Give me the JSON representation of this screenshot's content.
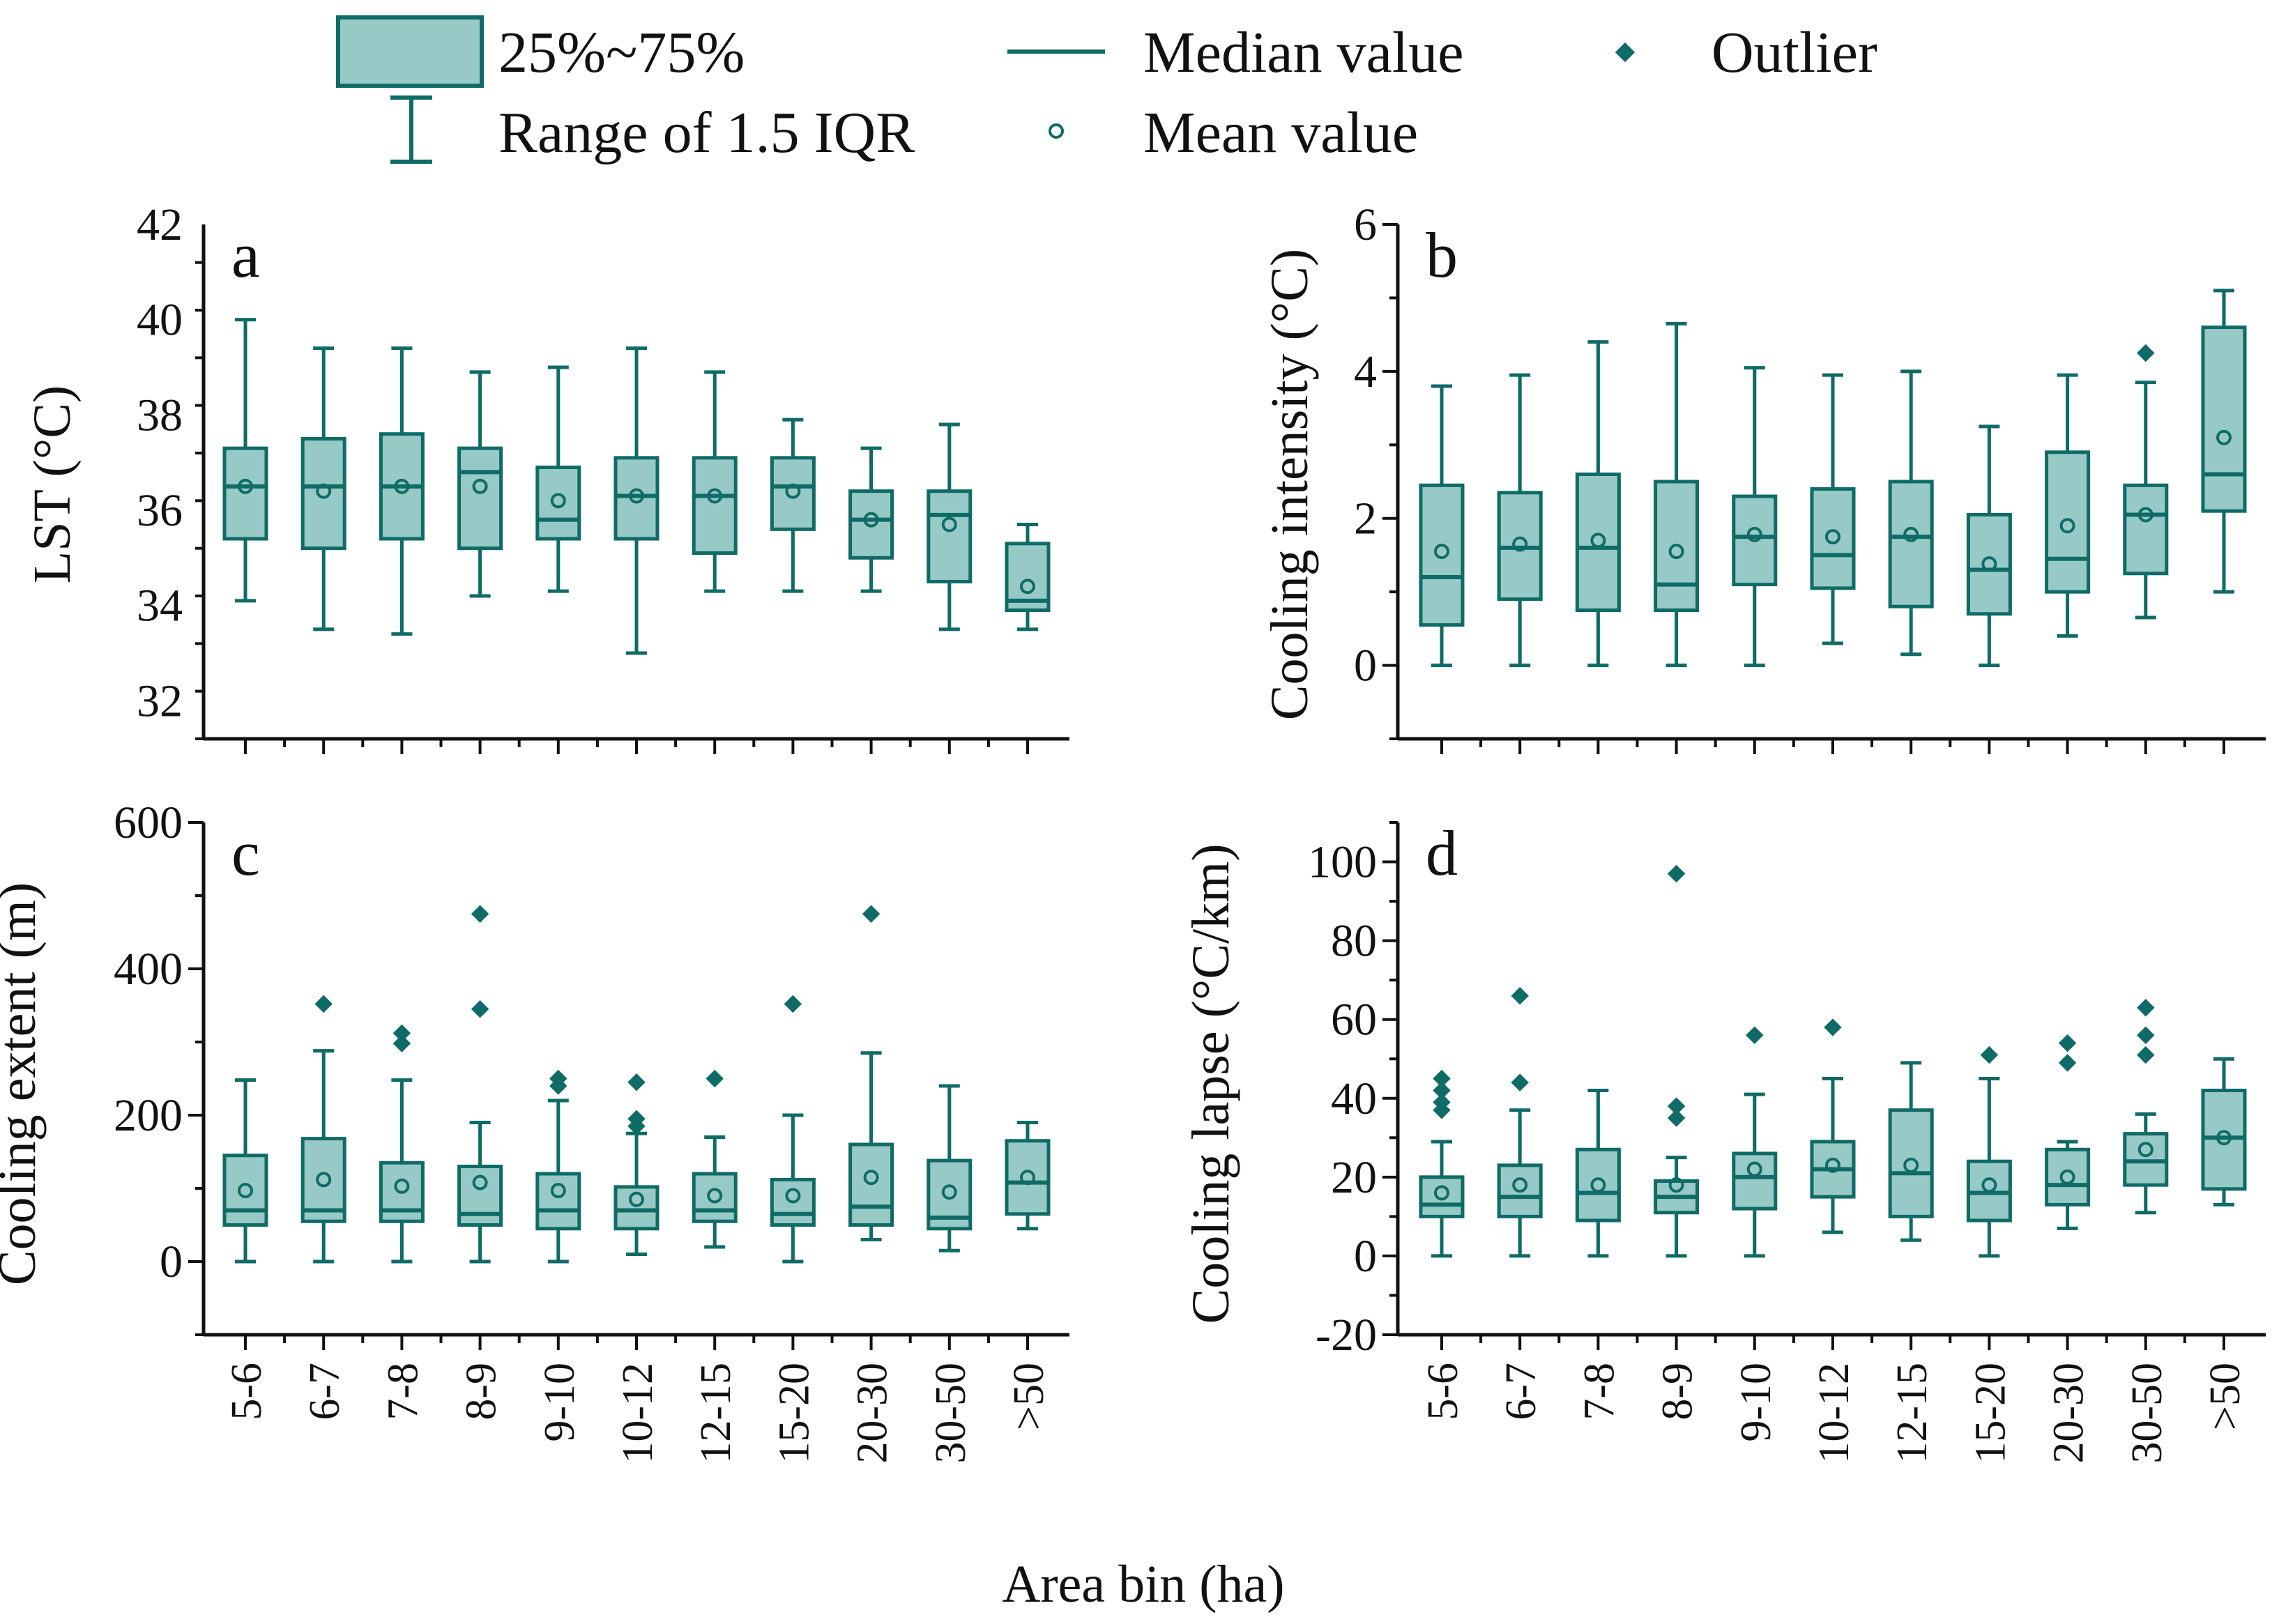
{
  "colors": {
    "box_fill": "#97cac6",
    "stroke": "#0f6b66",
    "text": "#111111"
  },
  "legend": {
    "box_label": "25%~75%",
    "whisker_label": "Range of 1.5 IQR",
    "median_label": "Median value",
    "mean_label": "Mean value",
    "outlier_label": "Outlier"
  },
  "xlabel": "Area bin (ha)",
  "chart_data": [
    {
      "type": "box",
      "panel": "a",
      "ylabel": "LST (°C)",
      "ylim": [
        31.2,
        42
      ],
      "yticks": [
        32,
        34,
        36,
        38,
        40,
        42
      ],
      "categories": [
        "5-6",
        "6-7",
        "7-8",
        "8-9",
        "9-10",
        "10-12",
        "12-15",
        "15-20",
        "20-30",
        "30-50",
        ">50"
      ],
      "boxes": [
        {
          "lo": 34.1,
          "q1": 35.4,
          "med": 36.5,
          "q3": 37.3,
          "hi": 40.0,
          "mean": 36.5,
          "out": []
        },
        {
          "lo": 33.5,
          "q1": 35.2,
          "med": 36.5,
          "q3": 37.5,
          "hi": 39.4,
          "mean": 36.4,
          "out": []
        },
        {
          "lo": 33.4,
          "q1": 35.4,
          "med": 36.5,
          "q3": 37.6,
          "hi": 39.4,
          "mean": 36.5,
          "out": []
        },
        {
          "lo": 34.2,
          "q1": 35.2,
          "med": 36.8,
          "q3": 37.3,
          "hi": 38.9,
          "mean": 36.5,
          "out": []
        },
        {
          "lo": 34.3,
          "q1": 35.4,
          "med": 35.8,
          "q3": 36.9,
          "hi": 39.0,
          "mean": 36.2,
          "out": []
        },
        {
          "lo": 33.0,
          "q1": 35.4,
          "med": 36.3,
          "q3": 37.1,
          "hi": 39.4,
          "mean": 36.3,
          "out": []
        },
        {
          "lo": 34.3,
          "q1": 35.1,
          "med": 36.3,
          "q3": 37.1,
          "hi": 38.9,
          "mean": 36.3,
          "out": []
        },
        {
          "lo": 34.3,
          "q1": 35.6,
          "med": 36.5,
          "q3": 37.1,
          "hi": 37.9,
          "mean": 36.4,
          "out": []
        },
        {
          "lo": 34.3,
          "q1": 35.0,
          "med": 35.8,
          "q3": 36.4,
          "hi": 37.3,
          "mean": 35.8,
          "out": []
        },
        {
          "lo": 33.5,
          "q1": 34.5,
          "med": 35.9,
          "q3": 36.4,
          "hi": 37.8,
          "mean": 35.7,
          "out": []
        },
        {
          "lo": 33.5,
          "q1": 33.9,
          "med": 34.1,
          "q3": 35.3,
          "hi": 35.7,
          "mean": 34.4,
          "out": []
        }
      ]
    },
    {
      "type": "box",
      "panel": "b",
      "ylabel": "Cooling intensity (°C)",
      "ylim": [
        -1,
        6
      ],
      "yticks": [
        0,
        2,
        4,
        6
      ],
      "categories": [
        "5-6",
        "6-7",
        "7-8",
        "8-9",
        "9-10",
        "10-12",
        "12-15",
        "15-20",
        "20-30",
        "30-50",
        ">50"
      ],
      "boxes": [
        {
          "lo": 0,
          "q1": 0.55,
          "med": 1.2,
          "q3": 2.45,
          "hi": 3.8,
          "mean": 1.55,
          "out": []
        },
        {
          "lo": 0,
          "q1": 0.9,
          "med": 1.6,
          "q3": 2.35,
          "hi": 3.95,
          "mean": 1.65,
          "out": []
        },
        {
          "lo": 0,
          "q1": 0.75,
          "med": 1.6,
          "q3": 2.6,
          "hi": 4.4,
          "mean": 1.7,
          "out": []
        },
        {
          "lo": 0,
          "q1": 0.75,
          "med": 1.1,
          "q3": 2.5,
          "hi": 4.65,
          "mean": 1.55,
          "out": []
        },
        {
          "lo": 0,
          "q1": 1.1,
          "med": 1.75,
          "q3": 2.3,
          "hi": 4.05,
          "mean": 1.78,
          "out": []
        },
        {
          "lo": 0.3,
          "q1": 1.05,
          "med": 1.5,
          "q3": 2.4,
          "hi": 3.95,
          "mean": 1.75,
          "out": []
        },
        {
          "lo": 0.15,
          "q1": 0.8,
          "med": 1.75,
          "q3": 2.5,
          "hi": 4.0,
          "mean": 1.78,
          "out": []
        },
        {
          "lo": 0,
          "q1": 0.7,
          "med": 1.3,
          "q3": 2.05,
          "hi": 3.25,
          "mean": 1.38,
          "out": []
        },
        {
          "lo": 0.4,
          "q1": 1.0,
          "med": 1.45,
          "q3": 2.9,
          "hi": 3.95,
          "mean": 1.9,
          "out": []
        },
        {
          "lo": 0.65,
          "q1": 1.25,
          "med": 2.05,
          "q3": 2.45,
          "hi": 3.85,
          "mean": 2.05,
          "out": [
            4.25
          ]
        },
        {
          "lo": 1.0,
          "q1": 2.1,
          "med": 2.6,
          "q3": 4.6,
          "hi": 5.1,
          "mean": 3.1,
          "out": []
        }
      ]
    },
    {
      "type": "box",
      "panel": "c",
      "ylabel": "Cooling extent (m)",
      "ylim": [
        -100,
        600
      ],
      "yticks": [
        0,
        200,
        400,
        600
      ],
      "categories": [
        "5-6",
        "6-7",
        "7-8",
        "8-9",
        "9-10",
        "10-12",
        "12-15",
        "15-20",
        "20-30",
        "30-50",
        ">50"
      ],
      "boxes": [
        {
          "lo": 0,
          "q1": 50,
          "med": 70,
          "q3": 145,
          "hi": 248,
          "mean": 97,
          "out": []
        },
        {
          "lo": 0,
          "q1": 55,
          "med": 70,
          "q3": 168,
          "hi": 288,
          "mean": 112,
          "out": [
            352
          ]
        },
        {
          "lo": 0,
          "q1": 55,
          "med": 70,
          "q3": 135,
          "hi": 248,
          "mean": 103,
          "out": [
            298,
            312
          ]
        },
        {
          "lo": 0,
          "q1": 50,
          "med": 65,
          "q3": 130,
          "hi": 190,
          "mean": 108,
          "out": [
            345,
            475
          ]
        },
        {
          "lo": 0,
          "q1": 45,
          "med": 70,
          "q3": 120,
          "hi": 220,
          "mean": 97,
          "out": [
            240,
            250
          ]
        },
        {
          "lo": 10,
          "q1": 45,
          "med": 70,
          "q3": 102,
          "hi": 175,
          "mean": 85,
          "out": [
            185,
            195,
            245
          ]
        },
        {
          "lo": 20,
          "q1": 55,
          "med": 70,
          "q3": 120,
          "hi": 170,
          "mean": 90,
          "out": [
            250
          ]
        },
        {
          "lo": 0,
          "q1": 50,
          "med": 65,
          "q3": 112,
          "hi": 200,
          "mean": 90,
          "out": [
            352
          ]
        },
        {
          "lo": 30,
          "q1": 50,
          "med": 75,
          "q3": 160,
          "hi": 285,
          "mean": 115,
          "out": [
            475
          ]
        },
        {
          "lo": 15,
          "q1": 45,
          "med": 60,
          "q3": 138,
          "hi": 240,
          "mean": 95,
          "out": []
        },
        {
          "lo": 45,
          "q1": 65,
          "med": 108,
          "q3": 165,
          "hi": 190,
          "mean": 115,
          "out": []
        }
      ]
    },
    {
      "type": "box",
      "panel": "d",
      "ylabel": "Cooling lapse (°C/km)",
      "ylim": [
        -20,
        110
      ],
      "yticks": [
        -20,
        0,
        20,
        40,
        60,
        80,
        100
      ],
      "categories": [
        "5-6",
        "6-7",
        "7-8",
        "8-9",
        "9-10",
        "10-12",
        "12-15",
        "15-20",
        "20-30",
        "30-50",
        ">50"
      ],
      "boxes": [
        {
          "lo": 0,
          "q1": 10,
          "med": 13,
          "q3": 20,
          "hi": 29,
          "mean": 16,
          "out": [
            37,
            39,
            42,
            45
          ]
        },
        {
          "lo": 0,
          "q1": 10,
          "med": 15,
          "q3": 23,
          "hi": 37,
          "mean": 18,
          "out": [
            44,
            66
          ]
        },
        {
          "lo": 0,
          "q1": 9,
          "med": 16,
          "q3": 27,
          "hi": 42,
          "mean": 18,
          "out": []
        },
        {
          "lo": 0,
          "q1": 11,
          "med": 15,
          "q3": 19,
          "hi": 25,
          "mean": 18,
          "out": [
            35,
            38,
            97
          ]
        },
        {
          "lo": 0,
          "q1": 12,
          "med": 20,
          "q3": 26,
          "hi": 41,
          "mean": 22,
          "out": [
            56
          ]
        },
        {
          "lo": 6,
          "q1": 15,
          "med": 22,
          "q3": 29,
          "hi": 45,
          "mean": 23,
          "out": [
            58
          ]
        },
        {
          "lo": 4,
          "q1": 10,
          "med": 21,
          "q3": 37,
          "hi": 49,
          "mean": 23,
          "out": []
        },
        {
          "lo": 0,
          "q1": 9,
          "med": 16,
          "q3": 24,
          "hi": 45,
          "mean": 18,
          "out": [
            51
          ]
        },
        {
          "lo": 7,
          "q1": 13,
          "med": 18,
          "q3": 27,
          "hi": 29,
          "mean": 20,
          "out": [
            49,
            54
          ]
        },
        {
          "lo": 11,
          "q1": 18,
          "med": 24,
          "q3": 31,
          "hi": 36,
          "mean": 27,
          "out": [
            51,
            56,
            63
          ]
        },
        {
          "lo": 13,
          "q1": 17,
          "med": 30,
          "q3": 42,
          "hi": 50,
          "mean": 30,
          "out": []
        }
      ]
    }
  ]
}
